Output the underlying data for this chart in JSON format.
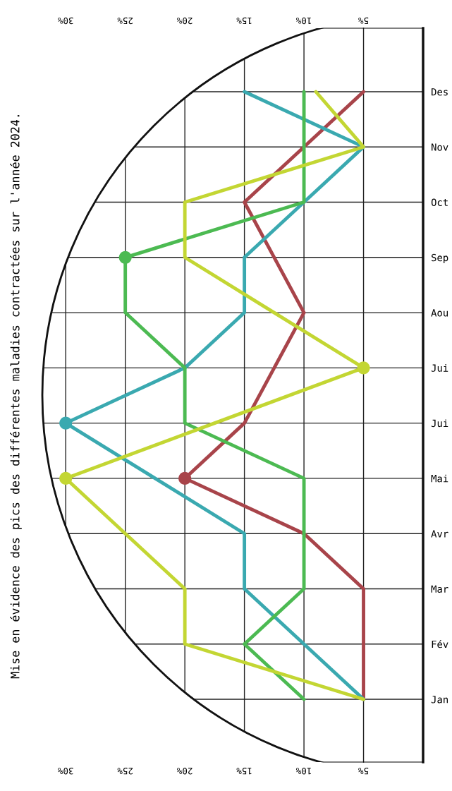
{
  "chart_data": {
    "type": "line",
    "orientation": "horizontal",
    "title": "Mise en évidence des pics des différentes maladies contractées sur l'année 2024.",
    "categories": [
      "Des",
      "Nov",
      "Oct",
      "Sep",
      "Aou",
      "Jui",
      "Jui",
      "Mai",
      "Avr",
      "Mar",
      "Fév",
      "Jan"
    ],
    "series": [
      {
        "color": "#a8444a",
        "values": [
          5,
          10,
          15,
          12.5,
          10,
          12.5,
          15,
          20,
          10,
          5,
          5,
          5
        ]
      },
      {
        "color": "#3aa9b0",
        "values": [
          15,
          5,
          10,
          15,
          15,
          20,
          30,
          22.5,
          15,
          15,
          10,
          5
        ]
      },
      {
        "color": "#4cba52",
        "values": [
          10,
          10,
          10,
          25,
          25,
          20,
          20,
          10,
          10,
          10,
          15,
          10
        ]
      },
      {
        "color": "#c3d633",
        "values": [
          9,
          5,
          20,
          20,
          12.5,
          5,
          17.5,
          30,
          25,
          20,
          20,
          5
        ]
      },
      {
        "type": "scatter",
        "marker": "circle",
        "color": "#a8444a",
        "values": [
          null,
          null,
          null,
          null,
          null,
          null,
          null,
          20,
          null,
          null,
          null,
          null
        ]
      },
      {
        "type": "scatter",
        "marker": "circle",
        "color": "#3aa9b0",
        "values": [
          null,
          null,
          null,
          null,
          null,
          null,
          30,
          null,
          null,
          null,
          null,
          null
        ]
      },
      {
        "type": "scatter",
        "marker": "circle",
        "color": "#4cba52",
        "values": [
          null,
          null,
          null,
          25,
          null,
          null,
          null,
          null,
          null,
          null,
          null,
          null
        ]
      },
      {
        "type": "scatter",
        "marker": "circle",
        "color": "#c3d633",
        "values": [
          null,
          null,
          null,
          null,
          null,
          5,
          null,
          30,
          null,
          null,
          null,
          null
        ]
      }
    ],
    "line_style": "solid",
    "grid": true,
    "xlim": [
      32.5,
      0
    ],
    "xticks": [
      {
        "value": 5,
        "label": "5%"
      },
      {
        "value": 10,
        "label": "10%"
      },
      {
        "value": 15,
        "label": "15%"
      },
      {
        "value": 20,
        "label": "20%"
      },
      {
        "value": 25,
        "label": "25%"
      },
      {
        "value": 30,
        "label": "30%"
      }
    ],
    "x2lim": [
      32.5,
      0
    ],
    "x2ticks": [
      {
        "value": 5,
        "label": "5%"
      },
      {
        "value": 10,
        "label": "10%"
      },
      {
        "value": 15,
        "label": "15%"
      },
      {
        "value": 20,
        "label": "20%"
      },
      {
        "value": 25,
        "label": "25%"
      },
      {
        "value": 30,
        "label": "30%"
      }
    ]
  }
}
